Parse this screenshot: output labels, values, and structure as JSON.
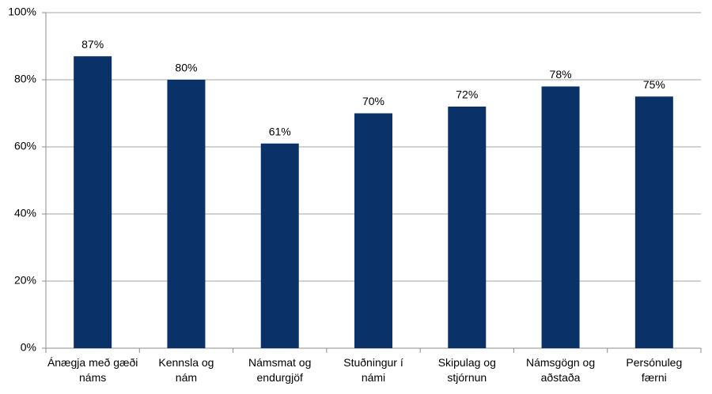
{
  "chart_data": {
    "type": "bar",
    "categories": [
      "Ánægja með gæði\nnáms",
      "Kennsla og\nnám",
      "Námsmat og\nendurgjöf",
      "Stuðningur í\nnámi",
      "Skipulag og\nstjórnun",
      "Námsgögn og\naðstaða",
      "Persónuleg\nfærni"
    ],
    "values": [
      87,
      80,
      61,
      70,
      72,
      78,
      75
    ],
    "value_labels": [
      "87%",
      "80%",
      "61%",
      "70%",
      "72%",
      "78%",
      "75%"
    ],
    "color": "#0b3268",
    "ylim": [
      0,
      100
    ],
    "yticks": [
      {
        "value": 0,
        "label": "0%"
      },
      {
        "value": 20,
        "label": "20%"
      },
      {
        "value": 40,
        "label": "40%"
      },
      {
        "value": 60,
        "label": "60%"
      },
      {
        "value": 80,
        "label": "80%"
      },
      {
        "value": 100,
        "label": "100%"
      }
    ],
    "grid": true
  }
}
